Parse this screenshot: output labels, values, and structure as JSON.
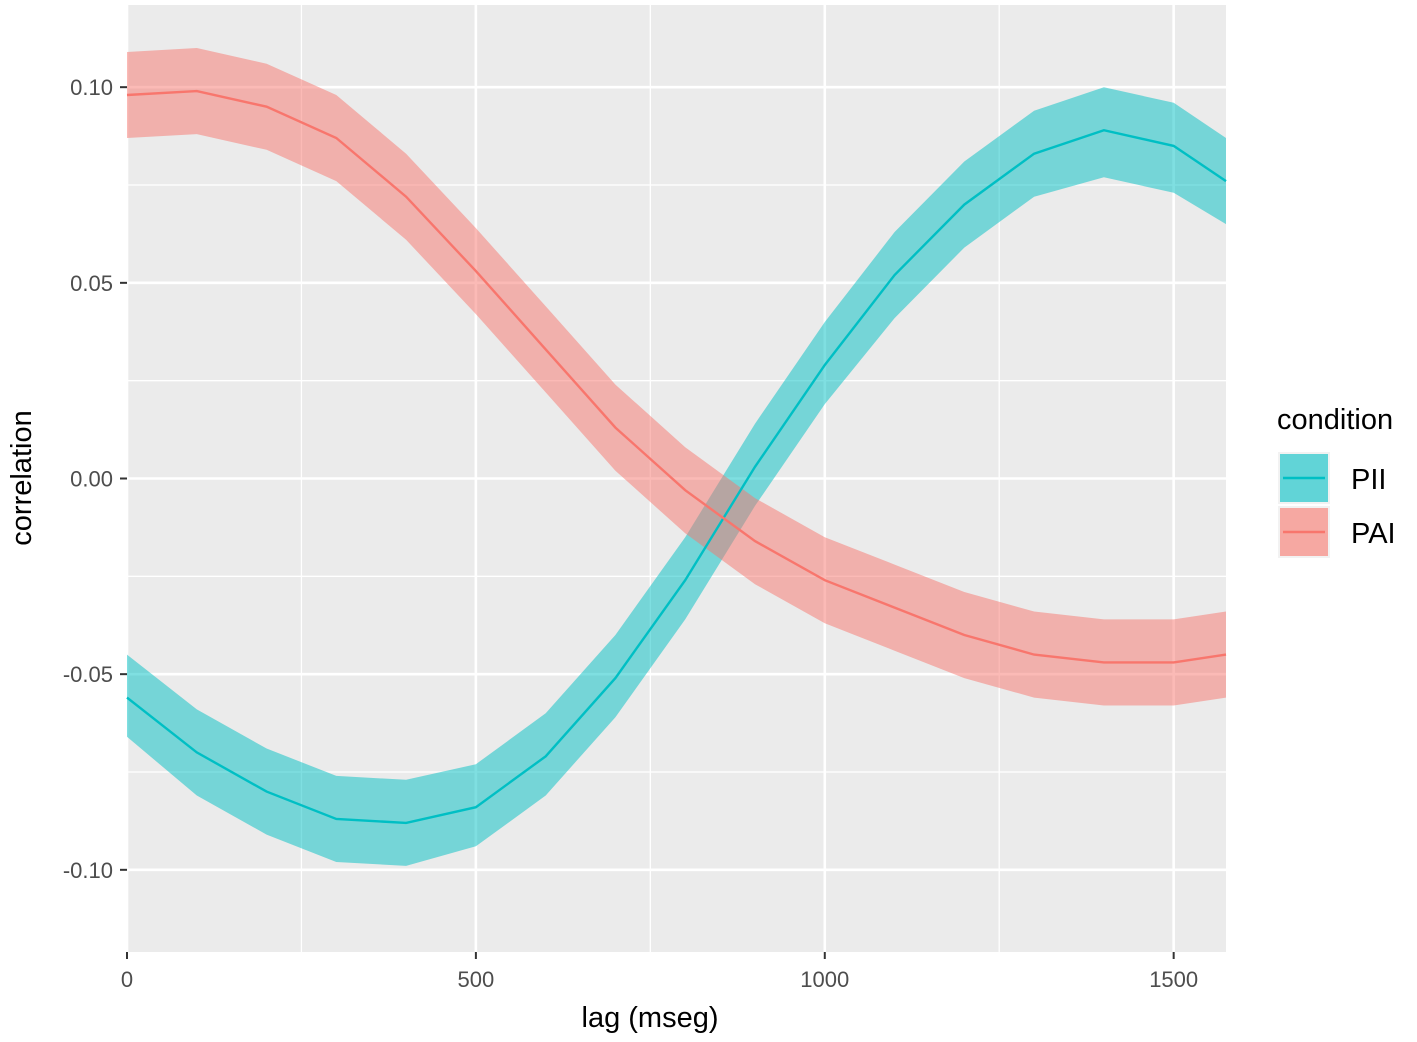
{
  "chart_data": {
    "type": "line",
    "title": "",
    "xlabel": "lag (mseg)",
    "ylabel": "correlation",
    "xlim": [
      0,
      1575
    ],
    "ylim": [
      -0.121,
      0.121
    ],
    "x_ticks": [
      0,
      500,
      1000,
      1500
    ],
    "x_tick_labels": [
      "0",
      "500",
      "1000",
      "1500"
    ],
    "y_ticks": [
      0.1,
      0.05,
      0.0,
      -0.05,
      -0.1
    ],
    "y_tick_labels": [
      "0.10",
      "0.05",
      "0.00",
      "-0.05",
      "-0.10"
    ],
    "grid": true,
    "legend": {
      "title": "condition",
      "position": "right"
    },
    "x": [
      0,
      100,
      200,
      300,
      400,
      500,
      600,
      700,
      800,
      900,
      1000,
      1100,
      1200,
      1300,
      1400,
      1500,
      1575
    ],
    "series": [
      {
        "name": "PII",
        "color": "#00BFC4",
        "fill": "#00BFC4",
        "values": [
          -0.056,
          -0.07,
          -0.08,
          -0.087,
          -0.088,
          -0.084,
          -0.071,
          -0.051,
          -0.026,
          0.003,
          0.029,
          0.052,
          0.07,
          0.083,
          0.089,
          0.085,
          0.076
        ],
        "lower": [
          -0.066,
          -0.081,
          -0.091,
          -0.098,
          -0.099,
          -0.094,
          -0.081,
          -0.061,
          -0.036,
          -0.007,
          0.019,
          0.041,
          0.059,
          0.072,
          0.077,
          0.073,
          0.065
        ],
        "upper": [
          -0.045,
          -0.059,
          -0.069,
          -0.076,
          -0.077,
          -0.073,
          -0.06,
          -0.04,
          -0.015,
          0.014,
          0.04,
          0.063,
          0.081,
          0.094,
          0.1,
          0.096,
          0.087
        ]
      },
      {
        "name": "PAI",
        "color": "#F8766D",
        "fill": "#F8766D",
        "values": [
          0.098,
          0.099,
          0.095,
          0.087,
          0.072,
          0.053,
          0.033,
          0.013,
          -0.003,
          -0.016,
          -0.026,
          -0.033,
          -0.04,
          -0.045,
          -0.047,
          -0.047,
          -0.045
        ],
        "lower": [
          0.087,
          0.088,
          0.084,
          0.076,
          0.061,
          0.042,
          0.022,
          0.002,
          -0.014,
          -0.027,
          -0.037,
          -0.044,
          -0.051,
          -0.056,
          -0.058,
          -0.058,
          -0.056
        ],
        "upper": [
          0.109,
          0.11,
          0.106,
          0.098,
          0.083,
          0.064,
          0.044,
          0.024,
          0.008,
          -0.005,
          -0.015,
          -0.022,
          -0.029,
          -0.034,
          -0.036,
          -0.036,
          -0.034
        ]
      }
    ]
  }
}
